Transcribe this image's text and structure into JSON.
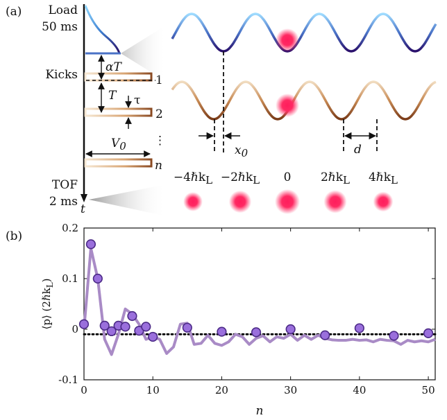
{
  "panel_a": {
    "label": "(a)",
    "load_label": "Load",
    "load_time": "50 ms",
    "kicks_label": "Kicks",
    "tof_label": "TOF",
    "tof_time": "2 ms",
    "t_label": "t",
    "alpha_T": "αT",
    "T": "T",
    "tau": "τ",
    "V0": "V",
    "V0_sub": "0",
    "kick_numbers": [
      "1",
      "2",
      "⋮",
      "n"
    ],
    "x0": "x",
    "x0_sub": "0",
    "d": "d",
    "momentum_labels": [
      "−4ℏk",
      "−2ℏk",
      "0",
      "2ℏk",
      "4ℏk"
    ],
    "momentum_sub": "L",
    "momentum_sub_flags": [
      true,
      true,
      false,
      true,
      true
    ],
    "momentum_weights": [
      0.55,
      0.8,
      1.0,
      0.85,
      0.6
    ]
  },
  "panel_b": {
    "label": "(b)"
  },
  "chart_data": {
    "type": "line",
    "xlabel": "n",
    "ylabel": "⟨p⟩ (2ℏk",
    "ylabel_sub": "L",
    "ylabel_end": ")",
    "xlim": [
      0,
      51
    ],
    "ylim": [
      -0.1,
      0.2
    ],
    "xticks": [
      0,
      10,
      20,
      30,
      40,
      50
    ],
    "yticks": [
      -0.1,
      0,
      0.1,
      0.2
    ],
    "ytick_labels": [
      "-0.1",
      "0",
      "0.1",
      "0.2"
    ],
    "reference_line_y": -0.01,
    "colors": {
      "line": "#a98bc6",
      "marker_fill": "#9a6fdc",
      "marker_edge": "#4b2a86",
      "ref": "#000000"
    },
    "series": [
      {
        "kind": "line",
        "x": [
          0,
          1,
          2,
          3,
          4,
          5,
          6,
          7,
          8,
          9,
          10,
          11,
          12,
          13,
          14,
          15,
          16,
          17,
          18,
          19,
          20,
          21,
          22,
          23,
          24,
          25,
          26,
          27,
          28,
          29,
          30,
          31,
          32,
          33,
          34,
          35,
          36,
          37,
          38,
          39,
          40,
          41,
          42,
          43,
          44,
          45,
          46,
          47,
          48,
          49,
          50,
          51
        ],
        "y": [
          0.0,
          0.16,
          0.1,
          -0.02,
          -0.05,
          -0.01,
          0.04,
          0.03,
          0.01,
          -0.02,
          -0.015,
          -0.02,
          -0.048,
          -0.035,
          0.01,
          0.012,
          -0.03,
          -0.028,
          -0.012,
          -0.028,
          -0.032,
          -0.025,
          -0.01,
          -0.015,
          -0.03,
          -0.018,
          -0.013,
          -0.025,
          -0.015,
          -0.018,
          -0.01,
          -0.022,
          -0.012,
          -0.02,
          -0.012,
          -0.018,
          -0.021,
          -0.022,
          -0.022,
          -0.02,
          -0.022,
          -0.021,
          -0.025,
          -0.02,
          -0.022,
          -0.023,
          -0.03,
          -0.022,
          -0.025,
          -0.023,
          -0.025,
          -0.02
        ]
      },
      {
        "kind": "markers",
        "x": [
          0,
          1,
          2,
          3,
          4,
          5,
          6,
          7,
          8,
          9,
          10,
          15,
          20,
          25,
          30,
          35,
          40,
          45,
          50
        ],
        "y": [
          0.01,
          0.168,
          0.1,
          0.007,
          -0.004,
          0.007,
          0.005,
          0.026,
          -0.003,
          0.005,
          -0.015,
          0.003,
          -0.005,
          -0.006,
          0.0,
          -0.012,
          0.002,
          -0.013,
          -0.008
        ]
      }
    ]
  }
}
